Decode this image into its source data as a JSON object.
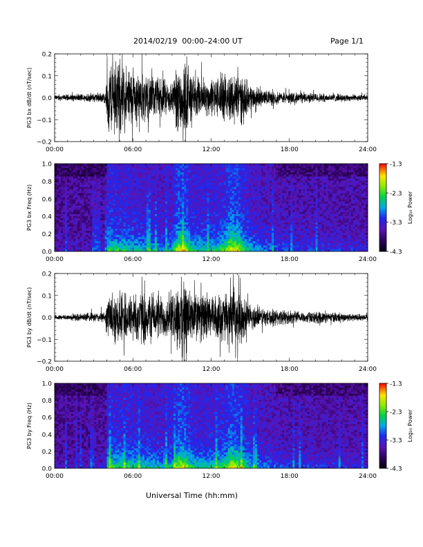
{
  "header": {
    "title": "2014/02/19  00:00–24:00 UT",
    "page": "Page 1/1"
  },
  "footer": {
    "xlabel": "Universal Time (hh:mm)"
  },
  "colorbar": {
    "label": "Log₁₀ Power",
    "ticks": [
      "-1.3",
      "-2.3",
      "-3.3",
      "-4.3"
    ],
    "range": [
      -4.3,
      -1.3
    ]
  },
  "chart_data": [
    {
      "type": "line",
      "ylabel": "PG3 bx dB/dt (nT/sec)",
      "xlim": [
        0,
        24
      ],
      "ylim": [
        -0.2,
        0.2
      ],
      "x_ticks": [
        "00:00",
        "06:00",
        "12:00",
        "18:00",
        "24:00"
      ],
      "y_ticks": [
        "0.2",
        "0.1",
        "0.0",
        "−0.1",
        "−0.2"
      ],
      "envelope": {
        "hours": [
          0,
          2,
          3.9,
          4.1,
          5,
          6,
          7,
          8,
          9,
          9.5,
          10,
          10.5,
          11,
          12,
          13,
          14,
          14.5,
          15,
          16,
          18,
          20,
          22,
          24
        ],
        "amplitude": [
          0.015,
          0.02,
          0.03,
          0.2,
          0.2,
          0.15,
          0.13,
          0.1,
          0.09,
          0.2,
          0.2,
          0.12,
          0.11,
          0.1,
          0.12,
          0.15,
          0.11,
          0.07,
          0.04,
          0.03,
          0.025,
          0.02,
          0.015
        ]
      }
    },
    {
      "type": "heatmap",
      "ylabel": "PG3 bx Freq (Hz)",
      "xlim": [
        0,
        24
      ],
      "ylim": [
        0,
        1.0
      ],
      "x_ticks": [
        "00:00",
        "06:00",
        "12:00",
        "18:00",
        "24:00"
      ],
      "y_ticks": [
        "1.0",
        "0.8",
        "0.6",
        "0.4",
        "0.2",
        "0.0"
      ],
      "zlim": [
        -4.3,
        -1.3
      ],
      "activity": {
        "hours": [
          0,
          2,
          3.9,
          4.1,
          5,
          6,
          7,
          8,
          9,
          9.5,
          10,
          10.5,
          11,
          12,
          13,
          13.5,
          14,
          14.5,
          15,
          16,
          18,
          20,
          22,
          24
        ],
        "level": [
          0.1,
          0.12,
          0.15,
          0.6,
          0.55,
          0.5,
          0.45,
          0.4,
          0.45,
          0.8,
          0.75,
          0.55,
          0.5,
          0.5,
          0.6,
          0.85,
          0.8,
          0.6,
          0.45,
          0.35,
          0.25,
          0.25,
          0.22,
          0.2
        ]
      }
    },
    {
      "type": "line",
      "ylabel": "PG3 by dB/dt (nT/sec)",
      "xlim": [
        0,
        24
      ],
      "ylim": [
        -0.2,
        0.2
      ],
      "x_ticks": [
        "00:00",
        "06:00",
        "12:00",
        "18:00",
        "24:00"
      ],
      "y_ticks": [
        "0.2",
        "0.1",
        "0.0",
        "−0.1",
        "−0.2"
      ],
      "envelope": {
        "hours": [
          0,
          2,
          3.9,
          4.1,
          5,
          6,
          7,
          8,
          9,
          9.5,
          10,
          10.5,
          11,
          12,
          13,
          14,
          14.5,
          15,
          16,
          18,
          20,
          22,
          24
        ],
        "amplitude": [
          0.012,
          0.02,
          0.03,
          0.13,
          0.14,
          0.13,
          0.14,
          0.12,
          0.11,
          0.2,
          0.2,
          0.14,
          0.13,
          0.11,
          0.13,
          0.15,
          0.11,
          0.07,
          0.05,
          0.035,
          0.03,
          0.025,
          0.018
        ]
      }
    },
    {
      "type": "heatmap",
      "ylabel": "PG3 by Freq (Hz)",
      "xlim": [
        0,
        24
      ],
      "ylim": [
        0,
        1.0
      ],
      "x_ticks": [
        "00:00",
        "06:00",
        "12:00",
        "18:00",
        "24:00"
      ],
      "y_ticks": [
        "1.0",
        "0.8",
        "0.6",
        "0.4",
        "0.2",
        "0.0"
      ],
      "zlim": [
        -4.3,
        -1.3
      ],
      "activity": {
        "hours": [
          0,
          2,
          3.9,
          4.1,
          5,
          6,
          7,
          8,
          9,
          9.5,
          10,
          10.5,
          11,
          12,
          13,
          13.5,
          14,
          14.5,
          15,
          16,
          18,
          20,
          22,
          24
        ],
        "level": [
          0.1,
          0.12,
          0.15,
          0.6,
          0.55,
          0.55,
          0.5,
          0.45,
          0.5,
          0.8,
          0.8,
          0.55,
          0.5,
          0.5,
          0.6,
          0.8,
          0.75,
          0.6,
          0.45,
          0.35,
          0.25,
          0.25,
          0.22,
          0.2
        ]
      }
    }
  ]
}
